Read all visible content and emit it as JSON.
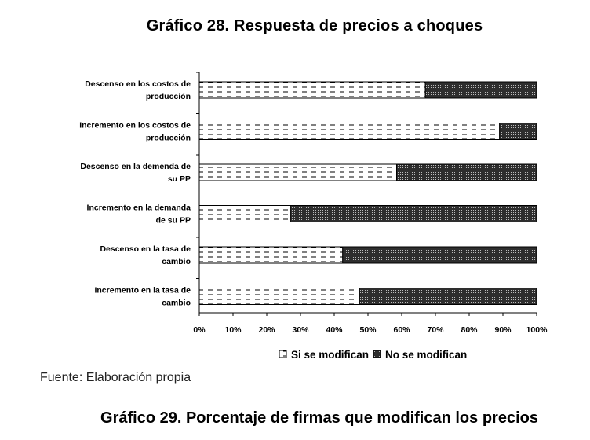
{
  "figure_title": "Gráfico 28. Respuesta de precios a choques",
  "source_note": "Fuente: Elaboración propia",
  "next_figure_title": "Gráfico 29. Porcentaje de firmas que modifican los precios",
  "colors": {
    "bar_stroke": "#000000",
    "fill_light": "#ffffff",
    "fill_dark": "#3a3a3a",
    "axis": "#000000"
  },
  "chart_data": {
    "type": "bar",
    "orientation": "horizontal",
    "stacked": true,
    "title": "Gráfico 28. Respuesta de precios a choques",
    "categories": [
      [
        "Descenso en los costos de",
        "producción"
      ],
      [
        "Incremento en los costos de",
        "producción"
      ],
      [
        "Descenso en la demenda de",
        "su PP"
      ],
      [
        "Incremento en la demanda",
        "de su PP"
      ],
      [
        "Descenso en la tasa de",
        "cambio"
      ],
      [
        "Incremento en la tasa de",
        "cambio"
      ]
    ],
    "series": [
      {
        "name": "Si se modifican",
        "values": [
          67,
          89,
          58.5,
          27,
          42.5,
          47.5
        ]
      },
      {
        "name": "No se modifican",
        "values": [
          33,
          11,
          41.5,
          73,
          57.5,
          52.5
        ]
      }
    ],
    "xlim": [
      0,
      100
    ],
    "xticks": [
      "0%",
      "10%",
      "20%",
      "30%",
      "40%",
      "50%",
      "60%",
      "70%",
      "80%",
      "90%",
      "100%"
    ],
    "xlabel": "",
    "ylabel": "",
    "legend_position": "bottom",
    "grid": false
  }
}
